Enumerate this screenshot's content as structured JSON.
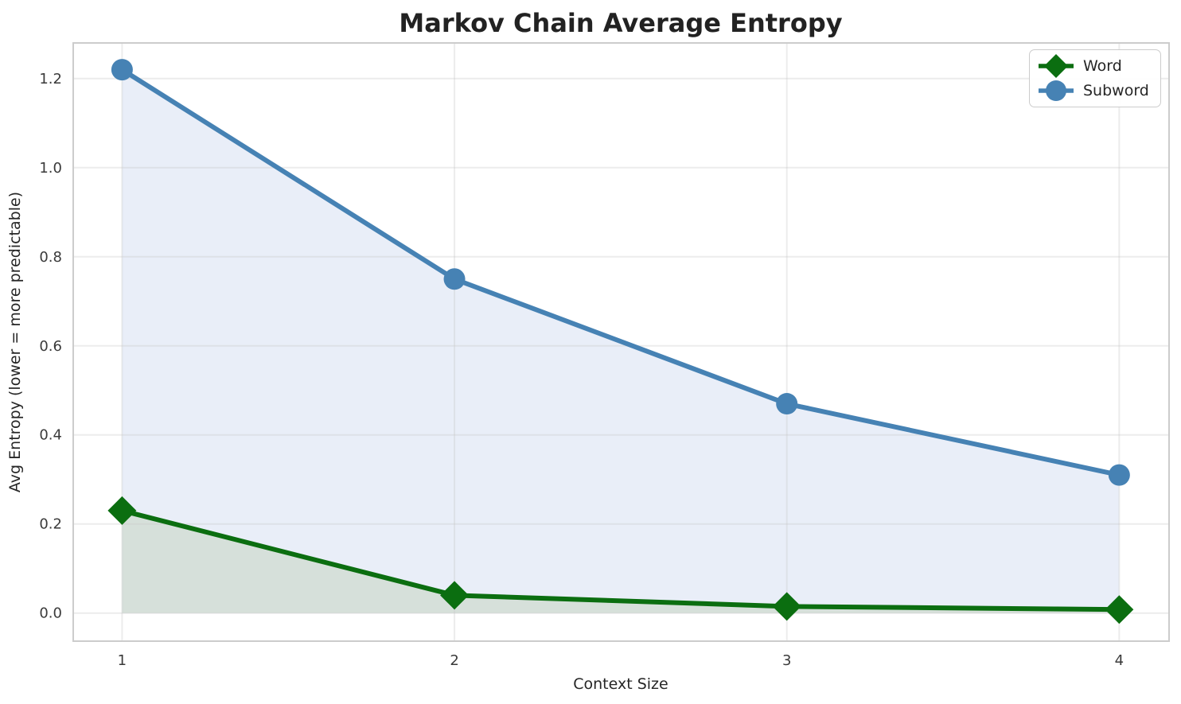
{
  "chart_data": {
    "type": "line",
    "title": "Markov Chain Average Entropy",
    "xlabel": "Context Size",
    "ylabel": "Avg Entropy (lower = more predictable)",
    "x": [
      1,
      2,
      3,
      4
    ],
    "series": [
      {
        "name": "Word",
        "values": [
          0.23,
          0.04,
          0.015,
          0.008
        ],
        "color": "#0b6e10",
        "fill_color": "#d6e0da",
        "marker": "diamond"
      },
      {
        "name": "Subword",
        "values": [
          1.22,
          0.75,
          0.47,
          0.31
        ],
        "color": "#4682b4",
        "fill_color": "#e9eef8",
        "marker": "circle"
      }
    ],
    "x_tick_labels": [
      "1",
      "2",
      "3",
      "4"
    ],
    "x_tick_values": [
      1,
      2,
      3,
      4
    ],
    "y_tick_labels": [
      "0.0",
      "0.2",
      "0.4",
      "0.6",
      "0.8",
      "1.0",
      "1.2"
    ],
    "y_tick_values": [
      0.0,
      0.2,
      0.4,
      0.6,
      0.8,
      1.0,
      1.2
    ],
    "xlim": [
      0.853,
      4.15
    ],
    "ylim": [
      -0.063,
      1.28
    ],
    "fill_baseline": 0,
    "grid": true,
    "legend_position": "top-right"
  },
  "style_colors": {
    "grid": "#c8c8c8",
    "spine": "#cccccc",
    "plot_background": "#ffffff"
  }
}
